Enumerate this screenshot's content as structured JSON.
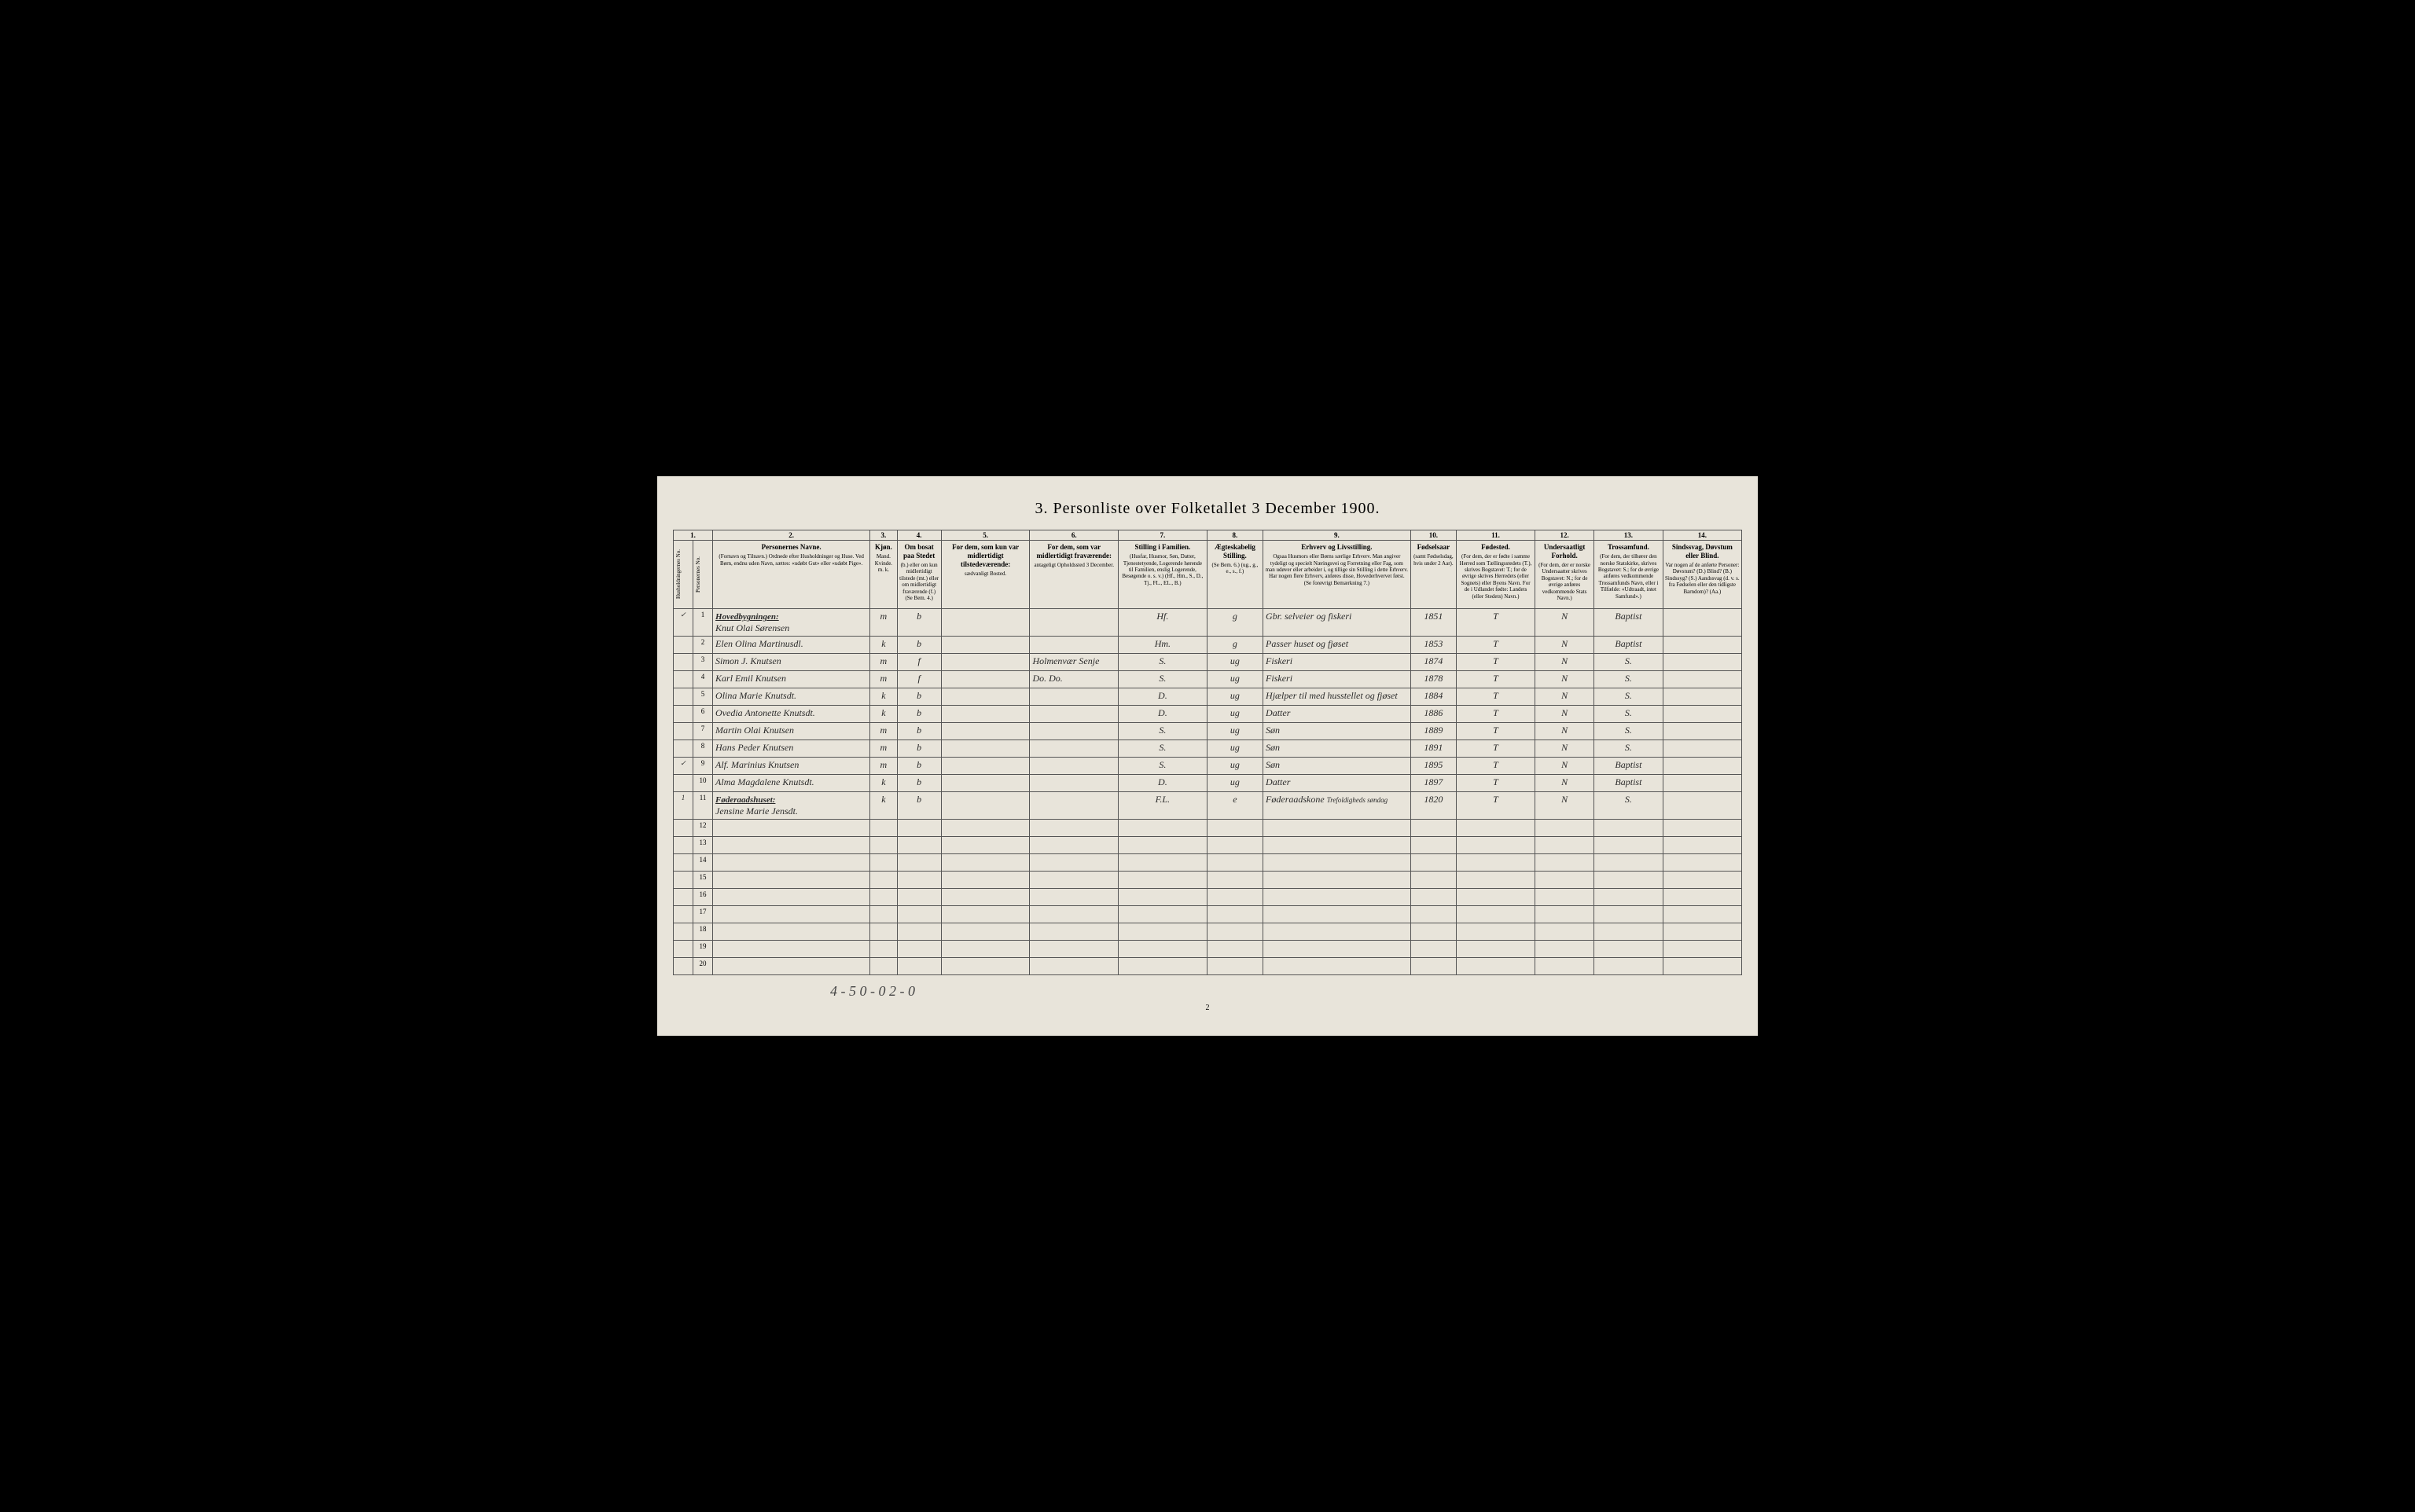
{
  "title": "3. Personliste over Folketallet 3 December 1900.",
  "columns": {
    "c1": {
      "num": "1.",
      "label": "Husholdningernes No."
    },
    "c1b": {
      "label": "Personernes No."
    },
    "c2": {
      "num": "2.",
      "title": "Personernes Navne.",
      "sub": "(Fornavn og Tilnavn.) Ordnede efter Husholdninger og Huse. Ved Børn, endnu uden Navn, sættes: «udøbt Gut» eller «udøbt Pige»."
    },
    "c3": {
      "num": "3.",
      "title": "Kjøn.",
      "sub": "Mand. Kvinde. m. k."
    },
    "c4": {
      "num": "4.",
      "title": "Om bosat paa Stedet",
      "sub": "(b.) eller om kun midlertidigt tilstede (mt.) eller om midlertidigt fraværende (f.) (Se Bem. 4.)"
    },
    "c5": {
      "num": "5.",
      "title": "For dem, som kun var midlertidigt tilstedeværende:",
      "sub": "sædvanligt Bosted."
    },
    "c6": {
      "num": "6.",
      "title": "For dem, som var midlertidigt fraværende:",
      "sub": "antageligt Opholdssted 3 December."
    },
    "c7": {
      "num": "7.",
      "title": "Stilling i Familien.",
      "sub": "(Husfar, Husmor, Søn, Datter, Tjenestetyende, Logerende hørende til Familien, enslig Logerende, Besøgende o. s. v.) (Hf., Hm., S., D., Tj., FL., EL., B.)"
    },
    "c8": {
      "num": "8.",
      "title": "Ægteskabelig Stilling.",
      "sub": "(Se Bem. 6.) (ug., g., e., s., f.)"
    },
    "c9": {
      "num": "9.",
      "title": "Erhverv og Livsstilling.",
      "sub": "Ogsaa Husmors eller Børns særlige Erhverv. Man angiver tydeligt og specielt Næringsvei og Forretning eller Fag, som man udøver eller arbeider i, og tillige sin Stilling i dette Erhverv. Har nogen flere Erhverv, anføres disse, Hovederhvervet først. (Se forøvrigt Bemærkning 7.)"
    },
    "c10": {
      "num": "10.",
      "title": "Fødselsaar",
      "sub": "(samt Fødselsdag, hvis under 2 Aar)."
    },
    "c11": {
      "num": "11.",
      "title": "Fødested.",
      "sub": "(For dem, der er fødte i samme Herred som Tællingsstedets (T.), skrives Bogstavet: T.; for de øvrige skrives Herredets (eller Sognets) eller Byens Navn. For de i Udlandet fødte: Landets (eller Stedets) Navn.)"
    },
    "c12": {
      "num": "12.",
      "title": "Undersaatligt Forhold.",
      "sub": "(For dem, der er norske Undersaatter skrives Bogstavet: N.; for de øvrige anføres vedkommende Stats Navn.)"
    },
    "c13": {
      "num": "13.",
      "title": "Trossamfund.",
      "sub": "(For dem, der tilhører den norske Statskirke, skrives Bogstavet: S.; for de øvrige anføres vedkommende Trossamfunds Navn, eller i Tilfælde: «Udtraadt, intet Samfund».)"
    },
    "c14": {
      "num": "14.",
      "title": "Sindssvag, Døvstum eller Blind.",
      "sub": "Var nogen af de anførte Personer: Døvstum? (D.) Blind? (B.) Sindssyg? (S.) Aandssvag (d. v. s. fra Fødselen eller den tidligste Barndom)? (Aa.)"
    }
  },
  "sections": {
    "s1": "Hovedbygningen:",
    "s2": "Føderaadshuset:"
  },
  "rows": [
    {
      "n": "1",
      "name": "Knut Olai Sørensen",
      "kjon": "m",
      "bosat": "b",
      "c5": "",
      "c6": "",
      "stilling": "Hf.",
      "aegte": "g",
      "erhverv": "Gbr. selveier og fiskeri",
      "aar": "1851",
      "fodested": "T",
      "under": "N",
      "tros": "Baptist",
      "c14": ""
    },
    {
      "n": "2",
      "name": "Elen Olina Martinusdl.",
      "kjon": "k",
      "bosat": "b",
      "c5": "",
      "c6": "",
      "stilling": "Hm.",
      "aegte": "g",
      "erhverv": "Passer huset og fjøset",
      "aar": "1853",
      "fodested": "T",
      "under": "N",
      "tros": "Baptist",
      "c14": ""
    },
    {
      "n": "3",
      "name": "Simon J. Knutsen",
      "kjon": "m",
      "bosat": "f",
      "c5": "",
      "c6": "Holmenvær Senje",
      "stilling": "S.",
      "aegte": "ug",
      "erhverv": "Fiskeri",
      "aar": "1874",
      "fodested": "T",
      "under": "N",
      "tros": "S.",
      "c14": ""
    },
    {
      "n": "4",
      "name": "Karl Emil Knutsen",
      "kjon": "m",
      "bosat": "f",
      "c5": "",
      "c6": "Do. Do.",
      "stilling": "S.",
      "aegte": "ug",
      "erhverv": "Fiskeri",
      "aar": "1878",
      "fodested": "T",
      "under": "N",
      "tros": "S.",
      "c14": ""
    },
    {
      "n": "5",
      "name": "Olina Marie Knutsdt.",
      "kjon": "k",
      "bosat": "b",
      "c5": "",
      "c6": "",
      "stilling": "D.",
      "aegte": "ug",
      "erhverv": "Hjælper til med husstellet og fjøset",
      "aar": "1884",
      "fodested": "T",
      "under": "N",
      "tros": "S.",
      "c14": ""
    },
    {
      "n": "6",
      "name": "Ovedia Antonette Knutsdt.",
      "kjon": "k",
      "bosat": "b",
      "c5": "",
      "c6": "",
      "stilling": "D.",
      "aegte": "ug",
      "erhverv": "Datter",
      "aar": "1886",
      "fodested": "T",
      "under": "N",
      "tros": "S.",
      "c14": ""
    },
    {
      "n": "7",
      "name": "Martin Olai Knutsen",
      "kjon": "m",
      "bosat": "b",
      "c5": "",
      "c6": "",
      "stilling": "S.",
      "aegte": "ug",
      "erhverv": "Søn",
      "aar": "1889",
      "fodested": "T",
      "under": "N",
      "tros": "S.",
      "c14": ""
    },
    {
      "n": "8",
      "name": "Hans Peder Knutsen",
      "kjon": "m",
      "bosat": "b",
      "c5": "",
      "c6": "",
      "stilling": "S.",
      "aegte": "ug",
      "erhverv": "Søn",
      "aar": "1891",
      "fodested": "T",
      "under": "N",
      "tros": "S.",
      "c14": ""
    },
    {
      "n": "9",
      "name": "Alf. Marinius Knutsen",
      "kjon": "m",
      "bosat": "b",
      "c5": "",
      "c6": "",
      "stilling": "S.",
      "aegte": "ug",
      "erhverv": "Søn",
      "aar": "1895",
      "fodested": "T",
      "under": "N",
      "tros": "Baptist",
      "c14": ""
    },
    {
      "n": "10",
      "name": "Alma Magdalene Knutsdt.",
      "kjon": "k",
      "bosat": "b",
      "c5": "",
      "c6": "",
      "stilling": "D.",
      "aegte": "ug",
      "erhverv": "Datter",
      "aar": "1897",
      "fodested": "T",
      "under": "N",
      "tros": "Baptist",
      "c14": ""
    },
    {
      "n": "11",
      "name": "Jensine Marie Jensdt.",
      "kjon": "k",
      "bosat": "b",
      "c5": "",
      "c6": "",
      "stilling": "F.L.",
      "aegte": "e",
      "erhverv": "Føderaadskone",
      "aar": "1820",
      "fodested": "T",
      "under": "N",
      "tros": "S.",
      "c14": "",
      "note": "Trefoldigheds søndag"
    }
  ],
  "empty_rows": [
    "12",
    "13",
    "14",
    "15",
    "16",
    "17",
    "18",
    "19",
    "20"
  ],
  "footer_code": "4 - 5 0 - 0 2 - 0",
  "page_number": "2",
  "household_mark": "1",
  "checkmark": "✓"
}
